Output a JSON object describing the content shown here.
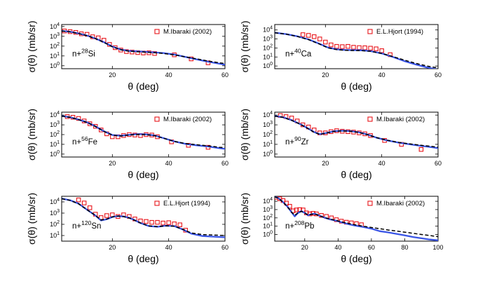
{
  "chart_data": [
    {
      "type": "line",
      "panel": "a",
      "title": "",
      "nucleus": {
        "prefix": "n+",
        "mass": "28",
        "element": "Si"
      },
      "legend": "M.Ibaraki (2002)",
      "xlabel": "θ (deg)",
      "ylabel": "σ(θ) (mb/sr)",
      "xlim": [
        2,
        60
      ],
      "xticks": [
        20,
        40,
        60
      ],
      "ylim_log10": [
        -0.3,
        4.2
      ],
      "yticks_exp": [
        0,
        1,
        2,
        3,
        4
      ],
      "series": [
        {
          "name": "M.Ibaraki (2002)",
          "kind": "points",
          "x": [
            3,
            5,
            7,
            9,
            11,
            13,
            15,
            17,
            19,
            21,
            23,
            25,
            27,
            29,
            31,
            33,
            35,
            42,
            48,
            54
          ],
          "y": [
            3500,
            3000,
            2500,
            1800,
            1600,
            900,
            700,
            400,
            150,
            70,
            40,
            28,
            25,
            22,
            20,
            21,
            18,
            13,
            5,
            2
          ]
        },
        {
          "name": "model (solid)",
          "kind": "solid",
          "x": [
            2,
            5,
            8,
            11,
            14,
            17,
            20,
            23,
            26,
            30,
            34,
            38,
            42,
            46,
            50,
            54,
            58,
            60
          ],
          "y": [
            3600,
            2900,
            2000,
            1200,
            600,
            250,
            90,
            45,
            32,
            28,
            24,
            20,
            14,
            8,
            4.5,
            2.6,
            1.6,
            1.3
          ]
        },
        {
          "name": "model (dashed)",
          "kind": "dashed",
          "x": [
            2,
            5,
            8,
            11,
            14,
            17,
            20,
            23,
            26,
            30,
            34,
            38,
            42,
            46,
            50,
            54,
            58,
            60
          ],
          "y": [
            3500,
            2800,
            1900,
            1150,
            580,
            240,
            85,
            43,
            30,
            26,
            22,
            18,
            13,
            8,
            5,
            3,
            2,
            1.7
          ]
        }
      ]
    },
    {
      "type": "line",
      "panel": "b",
      "title": "",
      "nucleus": {
        "prefix": "n+",
        "mass": "40",
        "element": "Ca"
      },
      "legend": "E.L.Hjort (1994)",
      "xlabel": "θ (deg)",
      "ylabel": "σ(θ) (mb/sr)",
      "xlim": [
        2,
        60
      ],
      "xticks": [
        20,
        40,
        60
      ],
      "ylim_log10": [
        -0.3,
        4.6
      ],
      "yticks_exp": [
        0,
        1,
        2,
        3,
        4
      ],
      "series": [
        {
          "name": "E.L.Hjort (1994)",
          "kind": "points",
          "x": [
            12,
            14,
            16,
            18,
            20,
            22,
            24,
            26,
            28,
            30,
            32,
            34,
            36,
            38,
            40,
            43
          ],
          "y": [
            3000,
            2500,
            1800,
            1000,
            450,
            220,
            150,
            140,
            150,
            120,
            110,
            105,
            95,
            80,
            50,
            18
          ]
        },
        {
          "name": "model (solid)",
          "kind": "solid",
          "x": [
            2,
            6,
            10,
            14,
            18,
            21,
            24,
            27,
            30,
            33,
            36,
            40,
            44,
            48,
            52,
            56,
            60
          ],
          "y": [
            5000,
            3500,
            2000,
            900,
            280,
            110,
            70,
            60,
            58,
            55,
            45,
            25,
            10,
            3.5,
            1.5,
            0.7,
            0.4
          ]
        },
        {
          "name": "model (dashed)",
          "kind": "dashed",
          "x": [
            2,
            6,
            10,
            14,
            18,
            21,
            24,
            27,
            30,
            33,
            36,
            40,
            44,
            48,
            52,
            56,
            60
          ],
          "y": [
            4800,
            3400,
            1900,
            850,
            260,
            100,
            65,
            55,
            52,
            50,
            42,
            25,
            11,
            4.5,
            2,
            1,
            0.6
          ]
        }
      ]
    },
    {
      "type": "line",
      "panel": "c",
      "title": "",
      "nucleus": {
        "prefix": "n+",
        "mass": "56",
        "element": "Fe"
      },
      "legend": "M.Ibaraki (2002)",
      "xlabel": "θ (deg)",
      "ylabel": "σ(θ) (mb/sr)",
      "xlim": [
        2,
        60
      ],
      "xticks": [
        20,
        40,
        60
      ],
      "ylim_log10": [
        -0.3,
        4.3
      ],
      "yticks_exp": [
        0,
        1,
        2,
        3,
        4
      ],
      "series": [
        {
          "name": "M.Ibaraki (2002)",
          "kind": "points",
          "x": [
            4,
            6,
            8,
            10,
            12,
            14,
            16,
            18,
            20,
            22,
            24,
            26,
            28,
            30,
            32,
            34,
            36,
            41,
            47,
            54
          ],
          "y": [
            7000,
            6000,
            4500,
            2500,
            1300,
            700,
            300,
            120,
            60,
            60,
            80,
            100,
            90,
            80,
            100,
            90,
            60,
            18,
            8,
            5
          ]
        },
        {
          "name": "model (solid)",
          "kind": "solid",
          "x": [
            2,
            5,
            8,
            11,
            14,
            17,
            20,
            23,
            26,
            29,
            32,
            35,
            38,
            42,
            46,
            50,
            54,
            58,
            60
          ],
          "y": [
            8000,
            6000,
            3500,
            1800,
            700,
            220,
            90,
            75,
            95,
            110,
            105,
            80,
            45,
            20,
            11,
            8,
            6,
            4,
            3.5
          ]
        },
        {
          "name": "model (dashed)",
          "kind": "dashed",
          "x": [
            2,
            5,
            8,
            11,
            14,
            17,
            20,
            23,
            26,
            29,
            32,
            35,
            38,
            42,
            46,
            50,
            54,
            58,
            60
          ],
          "y": [
            7800,
            5800,
            3400,
            1750,
            680,
            210,
            88,
            72,
            92,
            105,
            100,
            78,
            44,
            20,
            12,
            9,
            7,
            5,
            4.5
          ]
        }
      ]
    },
    {
      "type": "line",
      "panel": "d",
      "title": "",
      "nucleus": {
        "prefix": "n+",
        "mass": "90",
        "element": "Zr"
      },
      "legend": "M.Ibaraki (2002)",
      "xlabel": "θ (deg)",
      "ylabel": "σ(θ) (mb/sr)",
      "xlim": [
        2,
        60
      ],
      "xticks": [
        20,
        40,
        60
      ],
      "ylim_log10": [
        -0.3,
        4.3
      ],
      "yticks_exp": [
        0,
        1,
        2,
        3,
        4
      ],
      "series": [
        {
          "name": "M.Ibaraki (2002)",
          "kind": "points",
          "x": [
            4,
            6,
            8,
            10,
            12,
            14,
            16,
            18,
            20,
            22,
            24,
            26,
            28,
            30,
            32,
            34,
            36,
            41,
            47,
            54
          ],
          "y": [
            9000,
            7000,
            5000,
            2500,
            1000,
            600,
            300,
            150,
            150,
            200,
            250,
            220,
            200,
            180,
            150,
            120,
            80,
            25,
            10,
            3
          ]
        },
        {
          "name": "model (solid)",
          "kind": "solid",
          "x": [
            2,
            5,
            8,
            11,
            14,
            16,
            18,
            20,
            23,
            26,
            29,
            32,
            35,
            38,
            42,
            46,
            50,
            54,
            58,
            60
          ],
          "y": [
            8000,
            6000,
            3000,
            1200,
            400,
            180,
            110,
            140,
            220,
            250,
            230,
            170,
            100,
            50,
            25,
            15,
            10,
            7,
            5,
            4
          ]
        },
        {
          "name": "model (dashed)",
          "kind": "dashed",
          "x": [
            2,
            5,
            8,
            11,
            14,
            16,
            18,
            20,
            23,
            26,
            29,
            32,
            35,
            38,
            42,
            46,
            50,
            54,
            58,
            60
          ],
          "y": [
            7800,
            5800,
            2900,
            1150,
            380,
            170,
            105,
            135,
            210,
            240,
            220,
            165,
            98,
            50,
            26,
            16,
            11,
            8,
            6,
            5
          ]
        }
      ]
    },
    {
      "type": "line",
      "panel": "e",
      "title": "",
      "nucleus": {
        "prefix": "n+",
        "mass": "120",
        "element": "Sn"
      },
      "legend": "E.L.Hjort (1994)",
      "xlabel": "θ (deg)",
      "ylabel": "σ(θ) (mb/sr)",
      "xlim": [
        2,
        60
      ],
      "xticks": [
        20,
        40,
        60
      ],
      "ylim_log10": [
        0.5,
        4.5
      ],
      "yticks_exp": [
        1,
        2,
        3,
        4
      ],
      "series": [
        {
          "name": "E.L.Hjort (1994)",
          "kind": "points",
          "x": [
            8,
            10,
            12,
            14,
            16,
            18,
            20,
            22,
            24,
            26,
            28,
            30,
            32,
            34,
            36,
            38,
            40,
            42,
            44,
            46
          ],
          "y": [
            15000,
            8000,
            3000,
            800,
            400,
            600,
            700,
            500,
            700,
            500,
            300,
            200,
            180,
            150,
            150,
            130,
            140,
            110,
            90,
            30
          ]
        },
        {
          "name": "model (solid)",
          "kind": "solid",
          "x": [
            2,
            5,
            8,
            11,
            14,
            16,
            18,
            20,
            22,
            24,
            26,
            28,
            30,
            33,
            36,
            39,
            42,
            45,
            48,
            52,
            56,
            60
          ],
          "y": [
            20000,
            14000,
            7000,
            2000,
            600,
            220,
            280,
            450,
            550,
            500,
            380,
            230,
            130,
            70,
            60,
            75,
            70,
            35,
            15,
            9,
            8,
            7
          ]
        },
        {
          "name": "model (dashed)",
          "kind": "dashed",
          "x": [
            2,
            5,
            8,
            11,
            14,
            16,
            18,
            20,
            22,
            24,
            26,
            28,
            30,
            33,
            36,
            39,
            42,
            45,
            48,
            52,
            56,
            60
          ],
          "y": [
            19000,
            13500,
            6800,
            2000,
            620,
            240,
            300,
            460,
            540,
            490,
            370,
            225,
            130,
            72,
            62,
            74,
            68,
            36,
            17,
            12,
            11,
            10
          ]
        }
      ]
    },
    {
      "type": "line",
      "panel": "f",
      "title": "",
      "nucleus": {
        "prefix": "n+",
        "mass": "208",
        "element": "Pb"
      },
      "legend": "M.Ibaraki (2002)",
      "xlabel": "θ (deg)",
      "ylabel": "σ(θ) (mb/sr)",
      "xlim": [
        2,
        100
      ],
      "xticks": [
        20,
        40,
        60,
        80,
        100
      ],
      "ylim_log10": [
        -0.8,
        4.6
      ],
      "yticks_exp": [
        0,
        1,
        2,
        3,
        4
      ],
      "series": [
        {
          "name": "M.Ibaraki (2002)",
          "kind": "points",
          "x": [
            3,
            5,
            7,
            9,
            11,
            13,
            15,
            17,
            19,
            21,
            23,
            25,
            27,
            30,
            33,
            36,
            39,
            42,
            45,
            48,
            51,
            54
          ],
          "y": [
            30000,
            20000,
            12000,
            6000,
            2500,
            700,
            900,
            1000,
            900,
            400,
            300,
            350,
            300,
            200,
            150,
            100,
            60,
            40,
            30,
            25,
            20,
            15
          ]
        },
        {
          "name": "model (solid)",
          "kind": "solid",
          "x": [
            2,
            4,
            6,
            8,
            10,
            12,
            14,
            16,
            18,
            20,
            22,
            24,
            26,
            28,
            30,
            33,
            36,
            39,
            42,
            46,
            50,
            55,
            60,
            65,
            70,
            75,
            80,
            85,
            90,
            95,
            100
          ],
          "y": [
            35000,
            25000,
            12000,
            5000,
            1800,
            500,
            150,
            400,
            650,
            400,
            200,
            280,
            320,
            220,
            150,
            90,
            60,
            45,
            30,
            18,
            12,
            8,
            5,
            2.5,
            1.8,
            1.2,
            0.8,
            0.5,
            0.35,
            0.25,
            0.2
          ]
        },
        {
          "name": "model (dashed)",
          "kind": "dashed",
          "x": [
            2,
            4,
            6,
            8,
            10,
            12,
            14,
            16,
            18,
            20,
            22,
            24,
            26,
            28,
            30,
            33,
            36,
            39,
            42,
            46,
            50,
            55,
            60,
            65,
            70,
            75,
            80,
            85,
            90,
            95,
            100
          ],
          "y": [
            34000,
            24000,
            11500,
            4800,
            1750,
            520,
            200,
            420,
            620,
            390,
            210,
            270,
            300,
            210,
            145,
            92,
            65,
            48,
            33,
            22,
            15,
            10,
            7,
            5,
            3.5,
            2.6,
            1.9,
            1.4,
            1.0,
            0.75,
            0.55
          ]
        }
      ]
    }
  ]
}
